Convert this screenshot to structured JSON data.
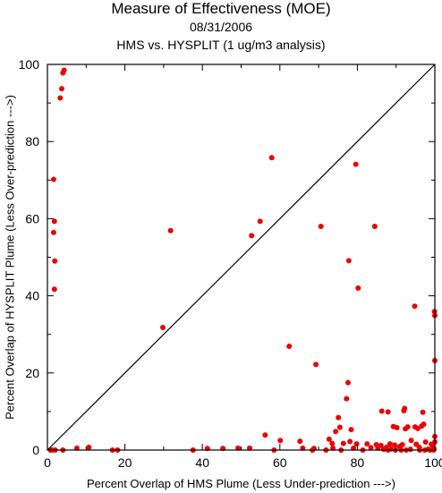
{
  "chart_data": {
    "type": "scatter",
    "title": "Measure of Effectiveness (MOE)",
    "subtitle_date": "08/31/2006",
    "subtitle_analysis": "HMS vs. HYSPLIT  (1 ug/m3 analysis)",
    "xlabel": "Percent Overlap of HMS Plume (Less Under-prediction --->)",
    "ylabel": "Percent Overlap of HYSPLIT Plume (Less Over-prediction --->)",
    "xlim": [
      0,
      100
    ],
    "ylim": [
      0,
      100
    ],
    "x_ticks": [
      "0",
      "20",
      "40",
      "60",
      "80",
      "100"
    ],
    "y_ticks": [
      "0",
      "20",
      "40",
      "60",
      "80",
      "100"
    ],
    "grid": false,
    "reference_line": {
      "from": [
        0,
        0
      ],
      "to": [
        100,
        100
      ]
    },
    "point_color": "#ee0000",
    "points": [
      [
        0.8,
        0
      ],
      [
        1.3,
        0
      ],
      [
        1.6,
        70.2
      ],
      [
        1.8,
        59.3
      ],
      [
        1.6,
        56.4
      ],
      [
        1.9,
        49
      ],
      [
        1.8,
        41.7
      ],
      [
        2.0,
        0
      ],
      [
        3.3,
        91.3
      ],
      [
        3.7,
        93.7
      ],
      [
        4.0,
        97.8
      ],
      [
        4.3,
        98.5
      ],
      [
        4.0,
        0
      ],
      [
        7.6,
        0.5
      ],
      [
        10.7,
        0.7
      ],
      [
        16.8,
        0
      ],
      [
        18.1,
        0
      ],
      [
        29.8,
        31.8
      ],
      [
        31.8,
        56.9
      ],
      [
        37.6,
        0
      ],
      [
        41.3,
        0.4
      ],
      [
        45.3,
        0.4
      ],
      [
        49.2,
        0.5
      ],
      [
        52.2,
        0.5
      ],
      [
        52.7,
        55.6
      ],
      [
        54.9,
        59.3
      ],
      [
        56.2,
        3.9
      ],
      [
        57.9,
        75.8
      ],
      [
        58.5,
        0
      ],
      [
        60.1,
        2.5
      ],
      [
        62.4,
        26.9
      ],
      [
        65.2,
        2.3
      ],
      [
        65.9,
        0.5
      ],
      [
        68.4,
        0
      ],
      [
        68.8,
        0.4
      ],
      [
        69.3,
        22.2
      ],
      [
        70.6,
        58
      ],
      [
        71.9,
        0
      ],
      [
        72.7,
        2.8
      ],
      [
        73.5,
        1.7
      ],
      [
        73.7,
        0.5
      ],
      [
        74.4,
        4.8
      ],
      [
        75.1,
        8.4
      ],
      [
        75.5,
        5.9
      ],
      [
        75.8,
        0
      ],
      [
        76.4,
        1.7
      ],
      [
        77.2,
        13.3
      ],
      [
        77.6,
        17.5
      ],
      [
        77.8,
        49.1
      ],
      [
        78.1,
        2.2
      ],
      [
        78.4,
        5.3
      ],
      [
        79.0,
        0.5
      ],
      [
        79.6,
        74.1
      ],
      [
        80.2,
        42
      ],
      [
        79.8,
        1.6
      ],
      [
        81.4,
        0
      ],
      [
        82.5,
        1.6
      ],
      [
        83.5,
        0.6
      ],
      [
        84.5,
        58
      ],
      [
        84.9,
        1.4
      ],
      [
        85.3,
        0.5
      ],
      [
        86.1,
        1.2
      ],
      [
        86.3,
        10.1
      ],
      [
        86.8,
        0.2
      ],
      [
        87.5,
        0.7
      ],
      [
        87.9,
        9.9
      ],
      [
        87.9,
        0
      ],
      [
        88.4,
        1.6
      ],
      [
        88.7,
        0.3
      ],
      [
        89.3,
        6.1
      ],
      [
        89.6,
        1.3
      ],
      [
        89.8,
        0
      ],
      [
        90.2,
        5.8
      ],
      [
        90.9,
        0.9
      ],
      [
        91.3,
        0
      ],
      [
        91.6,
        1.4
      ],
      [
        92.0,
        10.2
      ],
      [
        92.2,
        10.8
      ],
      [
        92.4,
        5.5
      ],
      [
        92.6,
        0
      ],
      [
        93.0,
        6
      ],
      [
        93.7,
        0.2
      ],
      [
        93.9,
        2.5
      ],
      [
        94.8,
        37.3
      ],
      [
        94.9,
        6
      ],
      [
        95.2,
        1.5
      ],
      [
        95.6,
        5.6
      ],
      [
        96.0,
        0.7
      ],
      [
        96.1,
        0
      ],
      [
        96.6,
        6.2
      ],
      [
        96.9,
        9.8
      ],
      [
        97.1,
        6.7
      ],
      [
        97.4,
        0
      ],
      [
        97.6,
        2.1
      ],
      [
        98.3,
        0.2
      ],
      [
        98.8,
        0
      ],
      [
        99.1,
        1.5
      ],
      [
        99.3,
        1.3
      ],
      [
        99.5,
        0.9
      ],
      [
        99.7,
        0
      ],
      [
        99.9,
        35.9
      ],
      [
        100,
        34.9
      ],
      [
        100,
        23.2
      ],
      [
        100,
        3.5
      ],
      [
        100,
        2.1
      ],
      [
        99.8,
        0.3
      ]
    ]
  }
}
